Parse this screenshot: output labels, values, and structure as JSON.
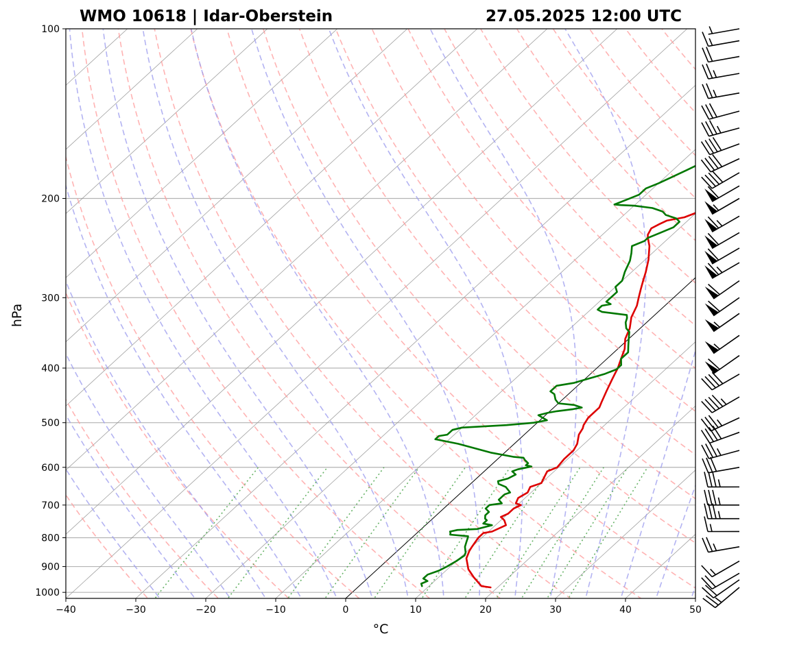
{
  "title_left": "WMO 10618 | Idar-Oberstein",
  "title_right": "27.05.2025 12:00 UTC",
  "chart_data": {
    "type": "line",
    "diagram": "skew-t log-p",
    "xlabel": "°C",
    "ylabel": "hPa",
    "xlim": [
      -40,
      50
    ],
    "ylim": [
      1025,
      100
    ],
    "y_scale": "log",
    "x_ticks": [
      -40,
      -30,
      -20,
      -10,
      0,
      10,
      20,
      30,
      40,
      50
    ],
    "x_tick_labels": [
      "−40",
      "−30",
      "−20",
      "−10",
      "0",
      "10",
      "20",
      "30",
      "40",
      "50"
    ],
    "y_ticks": [
      1000,
      900,
      800,
      700,
      600,
      500,
      400,
      300,
      200,
      100
    ],
    "y_tick_labels": [
      "1000",
      "900",
      "800",
      "700",
      "600",
      "500",
      "400",
      "300",
      "200",
      "100"
    ],
    "grid": true,
    "colors": {
      "temperature": "#dd0000",
      "dewpoint": "#007700",
      "dry_adiabats": "#ff9999",
      "moist_adiabats": "#9999ee",
      "mixing_ratio": "#55aa55",
      "isotherms": "#888888",
      "zero_isotherm": "#000000"
    },
    "series": [
      {
        "key": "temperature",
        "points": [
          [
            19,
            980
          ],
          [
            17.5,
            975
          ],
          [
            15,
            940
          ],
          [
            13,
            910
          ],
          [
            11,
            870
          ],
          [
            10.3,
            845
          ],
          [
            10,
            830
          ],
          [
            9.5,
            800
          ],
          [
            9.5,
            785
          ],
          [
            10.5,
            780
          ],
          [
            11.5,
            760
          ],
          [
            10.5,
            745
          ],
          [
            9.5,
            735
          ],
          [
            10,
            725
          ],
          [
            10,
            710
          ],
          [
            10.5,
            700
          ],
          [
            9.5,
            695
          ],
          [
            9,
            680
          ],
          [
            9.5,
            665
          ],
          [
            9,
            650
          ],
          [
            10,
            640
          ],
          [
            9.5,
            625
          ],
          [
            9,
            610
          ],
          [
            9.8,
            600
          ],
          [
            9.5,
            580
          ],
          [
            9.5,
            560
          ],
          [
            9,
            545
          ],
          [
            7.8,
            525
          ],
          [
            7.4,
            512
          ],
          [
            7,
            505
          ],
          [
            6.5,
            490
          ],
          [
            6.5,
            470
          ],
          [
            6,
            460
          ],
          [
            5,
            440
          ],
          [
            4,
            420
          ],
          [
            3.5,
            410
          ],
          [
            3,
            400
          ],
          [
            2,
            385
          ],
          [
            1,
            370
          ],
          [
            -0.5,
            355
          ],
          [
            -1.5,
            340
          ],
          [
            -3,
            325
          ],
          [
            -4,
            310
          ],
          [
            -5,
            300
          ],
          [
            -6,
            290
          ],
          [
            -7,
            280
          ],
          [
            -8,
            270
          ],
          [
            -9.5,
            257
          ],
          [
            -11.5,
            243
          ],
          [
            -13,
            235
          ],
          [
            -13.5,
            232
          ],
          [
            -14,
            226
          ],
          [
            -13.5,
            222
          ],
          [
            -13,
            219
          ],
          [
            -11,
            216
          ],
          [
            -10,
            212
          ],
          [
            -8.5,
            208
          ],
          [
            -8.3,
            206
          ],
          [
            -6,
            204
          ],
          [
            -4,
            202
          ],
          [
            -3,
            200
          ],
          [
            -1.5,
            197
          ],
          [
            -0.5,
            193
          ],
          [
            2,
            190
          ],
          [
            3,
            189
          ],
          [
            4.5,
            186
          ],
          [
            6,
            181
          ],
          [
            8,
            178
          ],
          [
            9,
            177
          ],
          [
            10,
            174
          ],
          [
            11,
            170
          ],
          [
            11,
            167
          ],
          [
            12,
            163
          ],
          [
            12.5,
            157
          ],
          [
            13,
            152
          ],
          [
            14,
            149
          ],
          [
            15,
            142
          ],
          [
            16,
            136
          ],
          [
            17,
            131
          ],
          [
            18,
            125
          ],
          [
            18.5,
            120
          ],
          [
            20,
            118
          ],
          [
            20.5,
            115
          ],
          [
            22,
            112
          ],
          [
            23,
            111
          ],
          [
            24,
            108
          ],
          [
            25,
            105
          ],
          [
            26,
            103
          ],
          [
            27,
            100
          ]
        ]
      },
      {
        "key": "dewpoint",
        "points": [
          [
            9,
            975
          ],
          [
            8.5,
            965
          ],
          [
            9,
            955
          ],
          [
            8,
            945
          ],
          [
            8,
            930
          ],
          [
            9,
            915
          ],
          [
            9.5,
            900
          ],
          [
            10,
            880
          ],
          [
            10.3,
            860
          ],
          [
            10,
            850
          ],
          [
            9,
            830
          ],
          [
            8.5,
            815
          ],
          [
            8,
            800
          ],
          [
            7.8,
            795
          ],
          [
            5,
            790
          ],
          [
            4.8,
            785
          ],
          [
            4.5,
            780
          ],
          [
            5.3,
            775
          ],
          [
            8,
            772
          ],
          [
            9.5,
            760
          ],
          [
            8,
            755
          ],
          [
            8,
            745
          ],
          [
            7.5,
            740
          ],
          [
            7,
            730
          ],
          [
            7,
            720
          ],
          [
            6,
            710
          ],
          [
            6,
            700
          ],
          [
            7.5,
            695
          ],
          [
            6.5,
            685
          ],
          [
            6.5,
            675
          ],
          [
            6.5,
            670
          ],
          [
            7,
            665
          ],
          [
            6,
            655
          ],
          [
            5.5,
            650
          ],
          [
            4,
            642
          ],
          [
            3.5,
            635
          ],
          [
            4.5,
            628
          ],
          [
            5,
            618
          ],
          [
            4,
            610
          ],
          [
            4.5,
            605
          ],
          [
            6,
            598
          ],
          [
            5,
            595
          ],
          [
            5,
            590
          ],
          [
            4,
            582
          ],
          [
            3.5,
            577
          ],
          [
            2,
            575
          ],
          [
            -2,
            565
          ],
          [
            -5,
            555
          ],
          [
            -8,
            545
          ],
          [
            -12,
            535
          ],
          [
            -12,
            528
          ],
          [
            -11,
            525
          ],
          [
            -11,
            515
          ],
          [
            -10,
            510
          ],
          [
            -4,
            505
          ],
          [
            -0.5,
            500
          ],
          [
            1,
            495
          ],
          [
            0,
            490
          ],
          [
            -1,
            485
          ],
          [
            0,
            480
          ],
          [
            1,
            477
          ],
          [
            3,
            473
          ],
          [
            4,
            470
          ],
          [
            2.5,
            465
          ],
          [
            0,
            462
          ],
          [
            -1,
            455
          ],
          [
            -2,
            445
          ],
          [
            -3,
            440
          ],
          [
            -3,
            430
          ],
          [
            -1,
            425
          ],
          [
            0,
            420
          ],
          [
            1,
            415
          ],
          [
            2,
            410
          ],
          [
            3,
            402
          ],
          [
            3,
            395
          ],
          [
            2,
            385
          ],
          [
            2,
            375
          ],
          [
            1,
            365
          ],
          [
            0,
            355
          ],
          [
            -1,
            345
          ],
          [
            -2,
            340
          ],
          [
            -3,
            332
          ],
          [
            -3.5,
            326
          ],
          [
            -4,
            322
          ],
          [
            -6,
            320
          ],
          [
            -8,
            318
          ],
          [
            -9,
            315
          ],
          [
            -9,
            310
          ],
          [
            -8,
            308
          ],
          [
            -9,
            305
          ],
          [
            -9,
            300
          ],
          [
            -9,
            293
          ],
          [
            -10,
            287
          ],
          [
            -10,
            280
          ],
          [
            -11,
            270
          ],
          [
            -12,
            258
          ],
          [
            -13,
            250
          ],
          [
            -14,
            243
          ],
          [
            -13,
            238
          ],
          [
            -13,
            235
          ],
          [
            -12,
            230
          ],
          [
            -11,
            225
          ],
          [
            -11,
            220
          ],
          [
            -12,
            217
          ],
          [
            -14,
            214
          ],
          [
            -15,
            211
          ],
          [
            -17,
            208
          ],
          [
            -20,
            206
          ],
          [
            -22,
            205.5
          ],
          [
            -23,
            205
          ],
          [
            -22,
            201
          ],
          [
            -21,
            197
          ],
          [
            -21,
            192
          ],
          [
            -20,
            188
          ],
          [
            -19,
            183
          ],
          [
            -18,
            178
          ],
          [
            -17,
            173
          ],
          [
            -16,
            167
          ],
          [
            -15,
            160
          ],
          [
            -14,
            155
          ],
          [
            -13,
            150
          ],
          [
            -12,
            145
          ],
          [
            -11,
            138
          ],
          [
            -10,
            132
          ],
          [
            -9,
            128
          ],
          [
            -7,
            124
          ],
          [
            -6,
            120
          ],
          [
            -5,
            115
          ],
          [
            -4,
            110
          ],
          [
            -3,
            105
          ],
          [
            -2,
            102
          ],
          [
            -1,
            100
          ]
        ]
      }
    ]
  },
  "wind_barbs": [
    {
      "p": 980,
      "speed": 25,
      "dir": 230
    },
    {
      "p": 950,
      "speed": 20,
      "dir": 235
    },
    {
      "p": 925,
      "speed": 20,
      "dir": 240
    },
    {
      "p": 880,
      "speed": 15,
      "dir": 240
    },
    {
      "p": 830,
      "speed": 25,
      "dir": 260
    },
    {
      "p": 780,
      "speed": 15,
      "dir": 270
    },
    {
      "p": 740,
      "speed": 35,
      "dir": 270
    },
    {
      "p": 700,
      "speed": 35,
      "dir": 270
    },
    {
      "p": 650,
      "speed": 35,
      "dir": 270
    },
    {
      "p": 600,
      "speed": 30,
      "dir": 260
    },
    {
      "p": 560,
      "speed": 35,
      "dir": 255
    },
    {
      "p": 520,
      "speed": 40,
      "dir": 250
    },
    {
      "p": 490,
      "speed": 35,
      "dir": 245
    },
    {
      "p": 450,
      "speed": 45,
      "dir": 240
    },
    {
      "p": 410,
      "speed": 40,
      "dir": 240
    },
    {
      "p": 380,
      "speed": 60,
      "dir": 235
    },
    {
      "p": 350,
      "speed": 55,
      "dir": 235
    },
    {
      "p": 320,
      "speed": 55,
      "dir": 235
    },
    {
      "p": 300,
      "speed": 60,
      "dir": 235
    },
    {
      "p": 280,
      "speed": 60,
      "dir": 235
    },
    {
      "p": 260,
      "speed": 65,
      "dir": 240
    },
    {
      "p": 245,
      "speed": 60,
      "dir": 240
    },
    {
      "p": 230,
      "speed": 60,
      "dir": 240
    },
    {
      "p": 215,
      "speed": 65,
      "dir": 240
    },
    {
      "p": 200,
      "speed": 55,
      "dir": 240
    },
    {
      "p": 190,
      "speed": 60,
      "dir": 240
    },
    {
      "p": 180,
      "speed": 40,
      "dir": 240
    },
    {
      "p": 170,
      "speed": 40,
      "dir": 245
    },
    {
      "p": 160,
      "speed": 40,
      "dir": 250
    },
    {
      "p": 150,
      "speed": 35,
      "dir": 255
    },
    {
      "p": 140,
      "speed": 30,
      "dir": 255
    },
    {
      "p": 130,
      "speed": 25,
      "dir": 260
    },
    {
      "p": 120,
      "speed": 25,
      "dir": 260
    },
    {
      "p": 112,
      "speed": 20,
      "dir": 260
    },
    {
      "p": 105,
      "speed": 15,
      "dir": 260
    },
    {
      "p": 100,
      "speed": 5,
      "dir": 260
    }
  ]
}
